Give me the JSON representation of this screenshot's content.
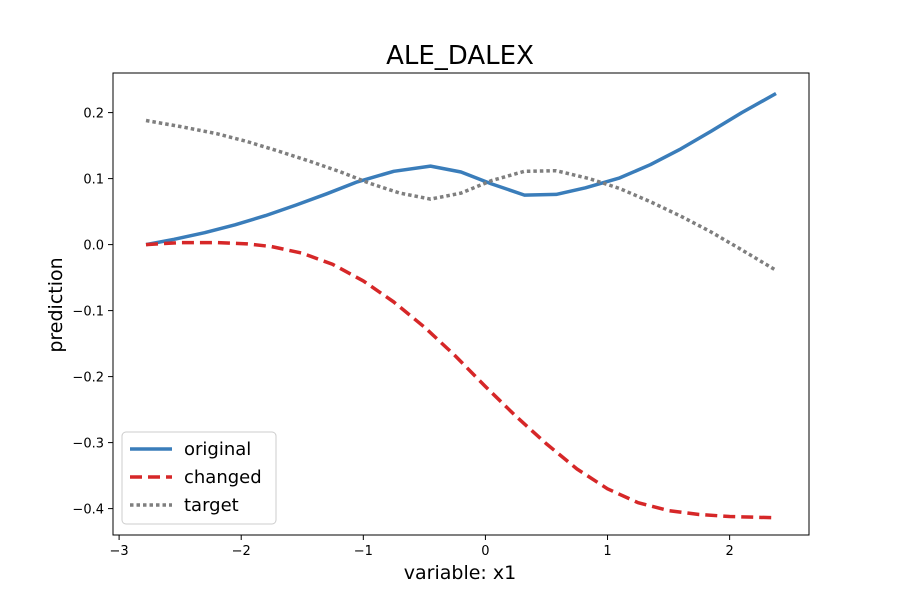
{
  "chart_data": {
    "type": "line",
    "title": "ALE_DALEX",
    "xlabel": "variable: x1",
    "ylabel": "prediction",
    "xlim": [
      -3.05,
      2.65
    ],
    "ylim": [
      -0.44,
      0.26
    ],
    "x_ticks": [
      -3,
      -2,
      -1,
      0,
      1,
      2
    ],
    "x_tick_labels": [
      "−3",
      "−2",
      "−1",
      "0",
      "1",
      "2"
    ],
    "y_ticks": [
      0.2,
      0.1,
      0.0,
      -0.1,
      -0.2,
      -0.3,
      -0.4
    ],
    "y_tick_labels": [
      "0.2",
      "0.1",
      "0.0",
      "−0.1",
      "−0.2",
      "−0.3",
      "−0.4"
    ],
    "grid": false,
    "legend_position": "bottom-left",
    "series": [
      {
        "name": "original",
        "color": "#3a7dba",
        "dash": "solid",
        "x": [
          -2.78,
          -2.55,
          -2.3,
          -2.05,
          -1.8,
          -1.55,
          -1.3,
          -1.05,
          -0.75,
          -0.45,
          -0.2,
          0.05,
          0.32,
          0.58,
          0.82,
          1.1,
          1.35,
          1.6,
          1.85,
          2.1,
          2.38
        ],
        "y": [
          0.0,
          0.008,
          0.018,
          0.03,
          0.044,
          0.06,
          0.077,
          0.095,
          0.111,
          0.119,
          0.11,
          0.092,
          0.075,
          0.076,
          0.086,
          0.101,
          0.121,
          0.145,
          0.172,
          0.2,
          0.229
        ]
      },
      {
        "name": "changed",
        "color": "#d62728",
        "dash": "dashed",
        "x": [
          -2.78,
          -2.5,
          -2.2,
          -1.95,
          -1.75,
          -1.5,
          -1.25,
          -1.0,
          -0.75,
          -0.5,
          -0.25,
          0.0,
          0.25,
          0.5,
          0.75,
          1.0,
          1.25,
          1.5,
          1.75,
          2.0,
          2.2,
          2.38
        ],
        "y": [
          0.0,
          0.003,
          0.003,
          0.001,
          -0.003,
          -0.013,
          -0.03,
          -0.055,
          -0.087,
          -0.125,
          -0.168,
          -0.215,
          -0.26,
          -0.302,
          -0.34,
          -0.37,
          -0.391,
          -0.403,
          -0.409,
          -0.412,
          -0.413,
          -0.414
        ]
      },
      {
        "name": "target",
        "color": "#7f7f7f",
        "dash": "dotted",
        "x": [
          -2.78,
          -2.5,
          -2.2,
          -1.95,
          -1.7,
          -1.45,
          -1.2,
          -0.95,
          -0.7,
          -0.45,
          -0.2,
          0.05,
          0.32,
          0.58,
          0.85,
          1.1,
          1.35,
          1.6,
          1.85,
          2.1,
          2.38
        ],
        "y": [
          0.188,
          0.179,
          0.168,
          0.156,
          0.142,
          0.127,
          0.111,
          0.093,
          0.078,
          0.069,
          0.078,
          0.097,
          0.111,
          0.112,
          0.1,
          0.085,
          0.065,
          0.043,
          0.019,
          -0.008,
          -0.039
        ]
      }
    ]
  }
}
